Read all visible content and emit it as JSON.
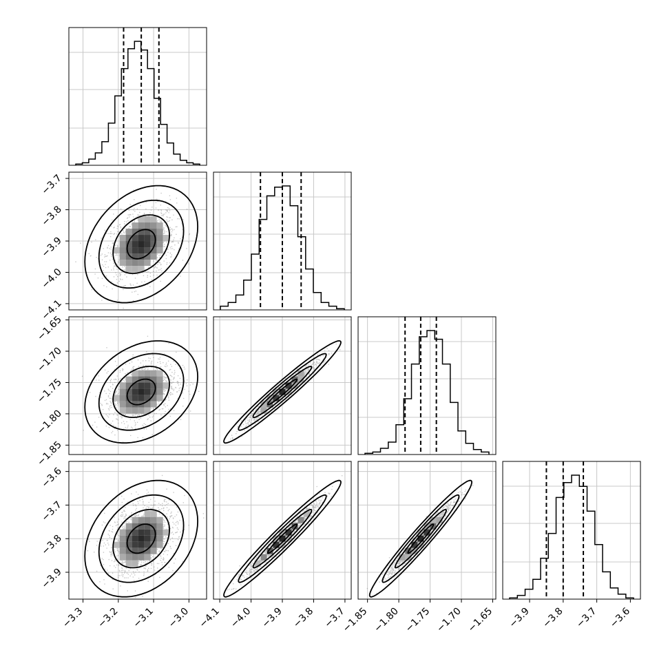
{
  "chart_data": {
    "type": "corner",
    "grid": true,
    "colors": {
      "line": "#000000",
      "scatter": "#808080",
      "grid": "#c8c8c8"
    },
    "parameters": [
      {
        "range": [
          -3.34,
          -2.95
        ],
        "ticks": [
          -3.3,
          -3.2,
          -3.1,
          -3.0
        ],
        "tick_labels": [
          "−3.3",
          "−3.2",
          "−3.1",
          "−3.0"
        ],
        "quantiles": [
          -3.185,
          -3.135,
          -3.085
        ]
      },
      {
        "range": [
          -4.12,
          -3.68
        ],
        "ticks": [
          -4.1,
          -4.0,
          -3.9,
          -3.8,
          -3.7
        ],
        "tick_labels": [
          "−4.1",
          "−4.0",
          "−3.9",
          "−3.8",
          "−3.7"
        ],
        "quantiles": [
          -3.97,
          -3.9,
          -3.84
        ]
      },
      {
        "range": [
          -1.865,
          -1.645
        ],
        "ticks": [
          -1.85,
          -1.8,
          -1.75,
          -1.7,
          -1.65
        ],
        "tick_labels": [
          "−1.85",
          "−1.80",
          "−1.75",
          "−1.70",
          "−1.65"
        ],
        "quantiles": [
          -1.79,
          -1.765,
          -1.74
        ]
      },
      {
        "range": [
          -3.98,
          -3.57
        ],
        "ticks": [
          -3.9,
          -3.8,
          -3.7,
          -3.6
        ],
        "tick_labels": [
          "−3.9",
          "−3.8",
          "−3.7",
          "−3.6"
        ],
        "quantiles": [
          -3.85,
          -3.8,
          -3.74
        ]
      }
    ],
    "histograms": [
      {
        "param": 0,
        "counts": [
          1,
          2,
          5,
          10,
          19,
          34,
          56,
          78,
          94,
          100,
          93,
          78,
          54,
          33,
          18,
          9,
          4,
          2,
          1
        ]
      },
      {
        "param": 1,
        "counts": [
          3,
          6,
          12,
          24,
          45,
          73,
          92,
          99,
          100,
          84,
          59,
          33,
          14,
          6,
          3,
          1
        ]
      },
      {
        "param": 2,
        "counts": [
          1,
          2,
          5,
          10,
          24,
          45,
          73,
          95,
          100,
          93,
          73,
          42,
          19,
          9,
          4,
          2
        ]
      },
      {
        "param": 3,
        "counts": [
          1,
          3,
          8,
          16,
          33,
          53,
          82,
          94,
          100,
          91,
          71,
          44,
          22,
          9,
          4,
          1
        ]
      }
    ],
    "pairs": [
      {
        "x": 0,
        "y": 1,
        "mean": [
          -3.135,
          -3.91
        ],
        "std": [
          0.047,
          0.055
        ],
        "corr": 0.3
      },
      {
        "x": 0,
        "y": 2,
        "mean": [
          -3.135,
          -1.765
        ],
        "std": [
          0.047,
          0.024
        ],
        "corr": 0.3
      },
      {
        "x": 1,
        "y": 2,
        "mean": [
          -3.9,
          -1.765
        ],
        "std": [
          0.055,
          0.024
        ],
        "corr": 0.97
      },
      {
        "x": 0,
        "y": 3,
        "mean": [
          -3.135,
          -3.8
        ],
        "std": [
          0.047,
          0.051
        ],
        "corr": 0.3
      },
      {
        "x": 1,
        "y": 3,
        "mean": [
          -3.9,
          -3.8
        ],
        "std": [
          0.055,
          0.051
        ],
        "corr": 0.97
      },
      {
        "x": 2,
        "y": 3,
        "mean": [
          -1.765,
          -3.8
        ],
        "std": [
          0.024,
          0.051
        ],
        "corr": 0.97
      }
    ]
  }
}
